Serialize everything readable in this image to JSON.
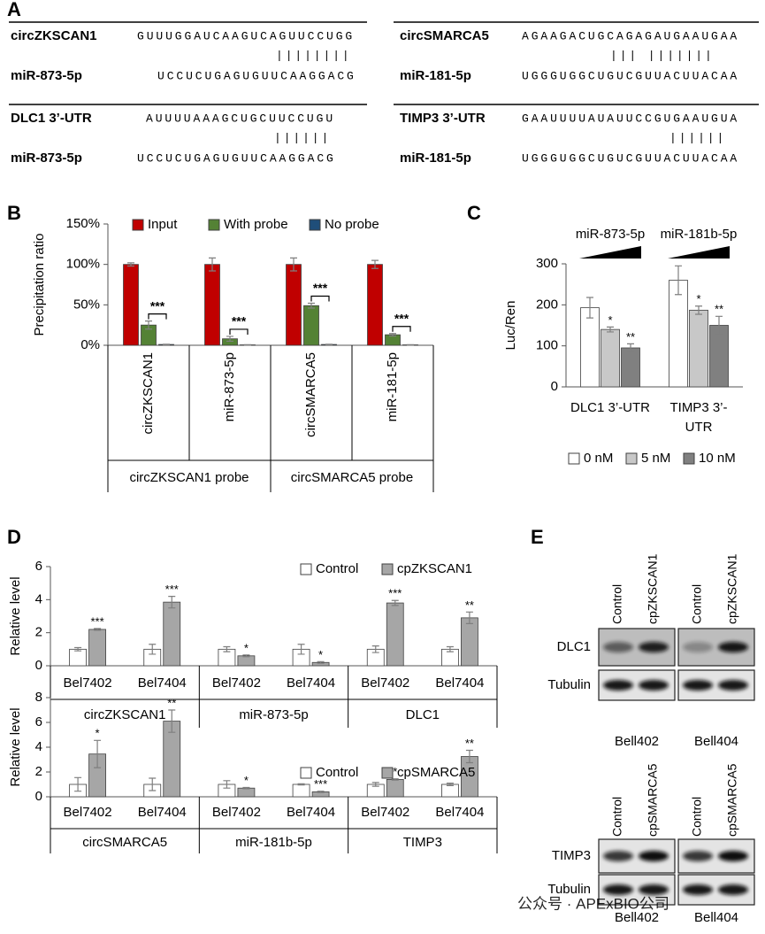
{
  "panel_a": {
    "label": "A",
    "pairs": [
      {
        "name1": "circZKSCAN1",
        "seq1": "GUUUGGAUCAAGUCAGUUCCUGG",
        "pairing": "||||||||",
        "name2": "miR-873-5p",
        "seq2": "UCCUCUGAGUGUUCAAGGACG"
      },
      {
        "name1": "DLC1 3’-UTR",
        "seq1": "AUUUUAAAGCUGCUUCCUGU",
        "pairing": "||||||",
        "name2": "miR-873-5p",
        "seq2": "UCCUCUGAGUGUUCAAGGACG"
      },
      {
        "name1": "circSMARCA5",
        "seq1": "AGAAGACUGCAGAGAUGAAUGAA",
        "pairing": "||| |||||||",
        "name2": "miR-181-5p",
        "seq2": "UGGGUGGCUGUCGUUACUUACAA"
      },
      {
        "name1": "TIMP3 3’-UTR",
        "seq1": "GAAUUUUAUAUUCCGUGAAUGUA",
        "pairing": "||||||",
        "name2": "miR-181-5p",
        "seq2": "UGGGUGGCUGUCGUUACUUACAA"
      }
    ]
  },
  "chart_data": [
    {
      "panel": "B",
      "type": "bar",
      "ylabel": "Precipitation ratio",
      "categories": [
        "circZKSCAN1",
        "miR-873-5p",
        "circSMARCA5",
        "miR-181-5p"
      ],
      "groups": [
        "circZKSCAN1 probe",
        "circSMARCA5 probe"
      ],
      "ylim": [
        0,
        150
      ],
      "yticks": [
        {
          "value": 0,
          "label": "0%"
        },
        {
          "value": 50,
          "label": "50%"
        },
        {
          "value": 100,
          "label": "100%"
        },
        {
          "value": 150,
          "label": "150%"
        }
      ],
      "legend": "top",
      "series": [
        {
          "name": "Input",
          "color": "#c00000",
          "values": [
            100,
            100,
            100,
            100
          ],
          "errors": [
            2,
            8,
            8,
            5
          ]
        },
        {
          "name": "With probe",
          "color": "#548235",
          "values": [
            25,
            8,
            49,
            13
          ],
          "errors": [
            5,
            3,
            3,
            1.5
          ],
          "significance": [
            "***",
            "***",
            "***",
            "***"
          ]
        },
        {
          "name": "No probe",
          "color": "#1f4e79",
          "values": [
            1,
            0.5,
            1,
            0.5
          ],
          "errors": [
            0.3,
            0.2,
            0.3,
            0.2
          ]
        }
      ]
    },
    {
      "panel": "C",
      "type": "bar",
      "ylabel": "Luc/Ren",
      "categories": [
        "DLC1 3’-UTR",
        "TIMP3 3’-UTR"
      ],
      "groups": [
        "miR-873-5p",
        "miR-181b-5p"
      ],
      "ylim": [
        0,
        300
      ],
      "yticks": [
        0,
        100,
        200,
        300
      ],
      "legend": "bottom",
      "series": [
        {
          "name": "0 nM",
          "color": "#ffffff",
          "values": [
            193,
            260
          ],
          "errors": [
            25,
            35
          ]
        },
        {
          "name": "5 nM",
          "color": "#c8c8c8",
          "values": [
            140,
            187
          ],
          "errors": [
            6,
            10
          ],
          "significance": [
            "*",
            "*"
          ]
        },
        {
          "name": "10 nM",
          "color": "#808080",
          "values": [
            95,
            150
          ],
          "errors": [
            10,
            22
          ],
          "significance": [
            "**",
            "**"
          ]
        }
      ]
    },
    {
      "panel": "D",
      "type": "bar",
      "ylabel": "Relative level",
      "categories": [
        "Bel7402",
        "Bel7404",
        "Bel7402",
        "Bel7404",
        "Bel7402",
        "Bel7404"
      ],
      "groups": [
        "circZKSCAN1",
        "miR-873-5p",
        "DLC1"
      ],
      "ylim": [
        0,
        6
      ],
      "yticks": [
        0,
        2,
        4,
        6
      ],
      "legend": "top right",
      "series": [
        {
          "name": "Control",
          "color": "#ffffff",
          "values": [
            1,
            1,
            1,
            1,
            1,
            1
          ],
          "errors": [
            0.1,
            0.3,
            0.15,
            0.3,
            0.2,
            0.15
          ]
        },
        {
          "name": "cpZKSCAN1",
          "color": "#a6a6a6",
          "values": [
            2.2,
            3.85,
            0.6,
            0.2,
            3.8,
            2.9
          ],
          "errors": [
            0.05,
            0.35,
            0.05,
            0.05,
            0.15,
            0.35
          ],
          "significance": [
            "***",
            "***",
            "*",
            "*",
            "***",
            "**"
          ]
        }
      ]
    },
    {
      "type": "bar",
      "ylabel": "Relative level",
      "categories": [
        "Bel7402",
        "Bel7404",
        "Bel7402",
        "Bel7404",
        "Bel7402",
        "Bel7404"
      ],
      "groups": [
        "circSMARCA5",
        "miR-181b-5p",
        "TIMP3"
      ],
      "ylim": [
        0,
        8
      ],
      "yticks": [
        0,
        2,
        4,
        6,
        8
      ],
      "legend": "top right",
      "series": [
        {
          "name": "Control",
          "color": "#ffffff",
          "values": [
            1,
            1,
            1,
            1,
            1,
            1
          ],
          "errors": [
            0.55,
            0.5,
            0.3,
            0.05,
            0.15,
            0.1
          ]
        },
        {
          "name": "cpSMARCA5",
          "color": "#a6a6a6",
          "values": [
            3.45,
            6.1,
            0.7,
            0.4,
            1.4,
            3.25
          ],
          "errors": [
            1.1,
            0.9,
            0.05,
            0.05,
            0.05,
            0.5
          ],
          "significance": [
            "*",
            "**",
            "*",
            "***",
            "*",
            "**"
          ]
        }
      ]
    }
  ],
  "panel_e": {
    "label": "E",
    "blots": [
      {
        "lanes": [
          "Control",
          "cpZKSCAN1",
          "Control",
          "cpZKSCAN1"
        ],
        "rows": [
          "DLC1",
          "Tubulin"
        ],
        "cell_lines": [
          "Bell402",
          "Bell404"
        ]
      },
      {
        "lanes": [
          "Control",
          "cpSMARCA5",
          "Control",
          "cpSMARCA5"
        ],
        "rows": [
          "TIMP3",
          "Tubulin"
        ],
        "cell_lines": [
          "Bell402",
          "Bell404"
        ]
      }
    ]
  },
  "watermark": "公众号 · APExBIO公司"
}
